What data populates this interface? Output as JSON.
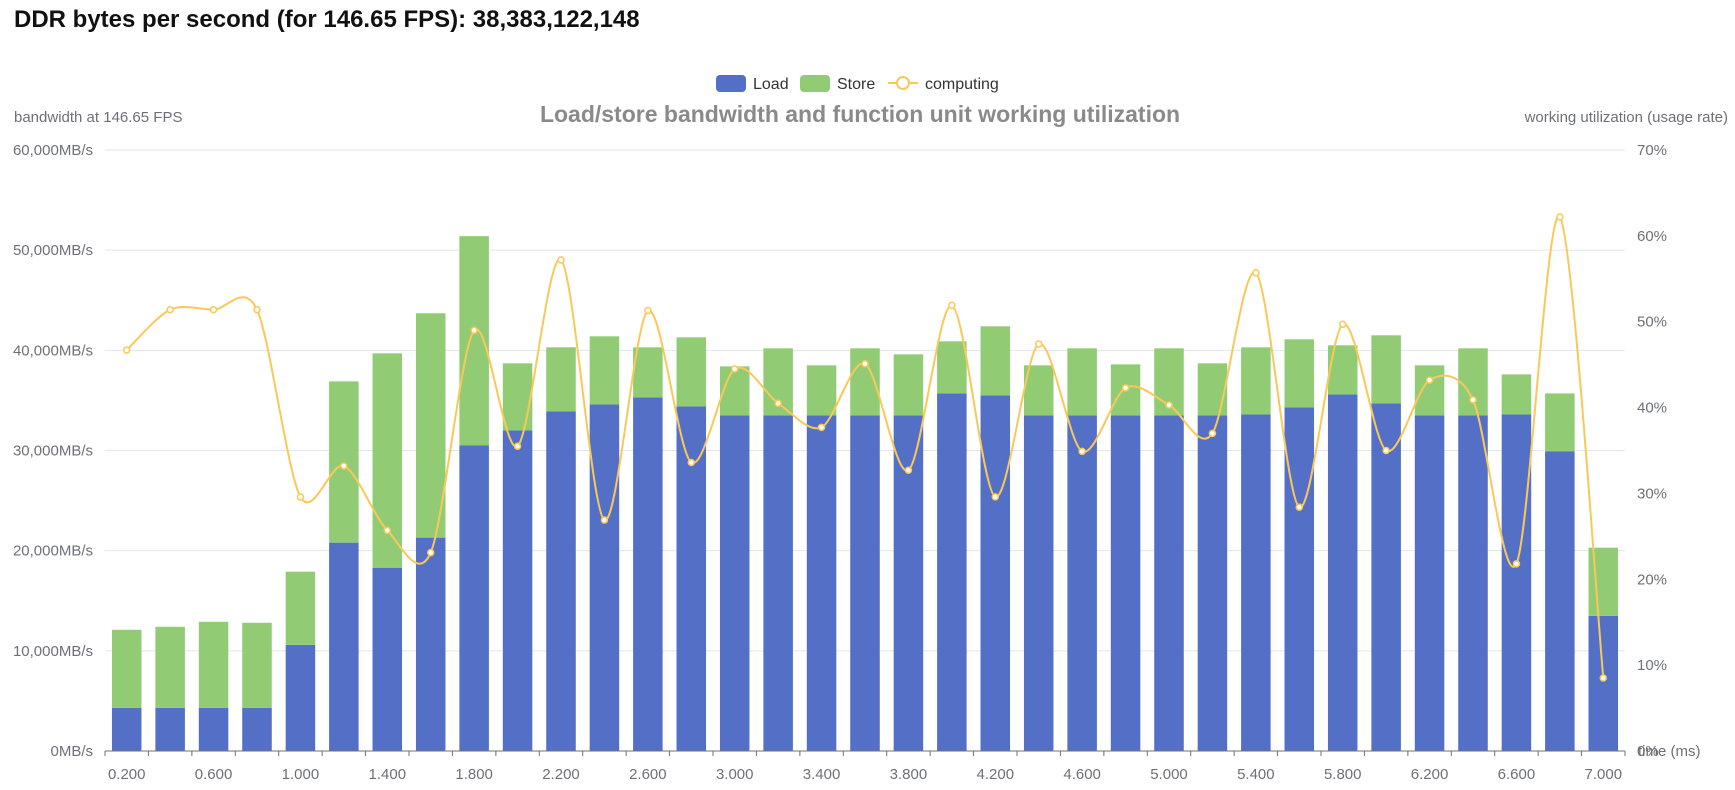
{
  "header": {
    "label": "DDR bytes per second (for 146.65 FPS):",
    "value": "38,383,122,148"
  },
  "chart_data": {
    "type": "bar",
    "title": "Load/store bandwidth and function unit working utilization",
    "left_axis_name": "bandwidth at 146.65 FPS",
    "right_axis_name": "working utilization (usage rate)",
    "x_axis_name": "time (ms)",
    "x": [
      0.2,
      0.4,
      0.6,
      0.8,
      1.0,
      1.2,
      1.4,
      1.6,
      1.8,
      2.0,
      2.2,
      2.4,
      2.6,
      2.8,
      3.0,
      3.2,
      3.4,
      3.6,
      3.8,
      4.0,
      4.2,
      4.4,
      4.6,
      4.8,
      5.0,
      5.2,
      5.4,
      5.6,
      5.8,
      6.0,
      6.2,
      6.4,
      6.6,
      6.8,
      7.0
    ],
    "x_tick_labels": [
      "0.200",
      "0.600",
      "1.000",
      "1.400",
      "1.800",
      "2.200",
      "2.600",
      "3.000",
      "3.400",
      "3.800",
      "4.200",
      "4.600",
      "5.000",
      "5.400",
      "5.800",
      "6.200",
      "6.600",
      "7.000"
    ],
    "ylim_left": [
      0,
      60000
    ],
    "left_ticks": [
      "0MB/s",
      "10,000MB/s",
      "20,000MB/s",
      "30,000MB/s",
      "40,000MB/s",
      "50,000MB/s",
      "60,000MB/s"
    ],
    "ylim_right": [
      0,
      70
    ],
    "right_ticks": [
      "0%",
      "10%",
      "20%",
      "30%",
      "40%",
      "50%",
      "60%",
      "70%"
    ],
    "legend": [
      "Load",
      "Store",
      "computing"
    ],
    "colors": {
      "load": "#5470c6",
      "store": "#91cc75",
      "computing": "#fac858",
      "axis": "#6e7079",
      "grid": "#e0e6f1"
    },
    "series": [
      {
        "name": "Load",
        "stack": "bandwidth",
        "values": [
          4300,
          4300,
          4300,
          4300,
          10600,
          20800,
          18300,
          21300,
          30500,
          32000,
          33900,
          34600,
          35300,
          34400,
          33500,
          33500,
          33500,
          33500,
          33500,
          35700,
          35500,
          33500,
          33500,
          33500,
          33500,
          33500,
          33600,
          34300,
          35600,
          34700,
          33500,
          33500,
          33600,
          29900,
          13500
        ]
      },
      {
        "name": "Store",
        "stack": "bandwidth",
        "values": [
          7800,
          8100,
          8600,
          8500,
          7300,
          16100,
          21400,
          22400,
          20900,
          6700,
          6400,
          6800,
          5000,
          6900,
          4900,
          6700,
          5000,
          6700,
          6100,
          5200,
          6900,
          5000,
          6700,
          5100,
          6700,
          5200,
          6700,
          6800,
          4900,
          6800,
          5000,
          6700,
          4000,
          5800,
          6800
        ]
      },
      {
        "name": "computing",
        "type": "line",
        "smooth": true,
        "unit": "%",
        "values": [
          46.7,
          51.4,
          51.4,
          51.4,
          29.6,
          33.2,
          25.7,
          23.1,
          49.0,
          35.5,
          57.2,
          26.9,
          51.3,
          33.6,
          44.5,
          40.5,
          37.7,
          45.1,
          32.7,
          51.9,
          29.6,
          47.4,
          34.9,
          42.3,
          40.3,
          37.0,
          55.7,
          28.4,
          49.7,
          35.0,
          43.2,
          40.9,
          21.8,
          62.2,
          8.5
        ]
      }
    ]
  }
}
